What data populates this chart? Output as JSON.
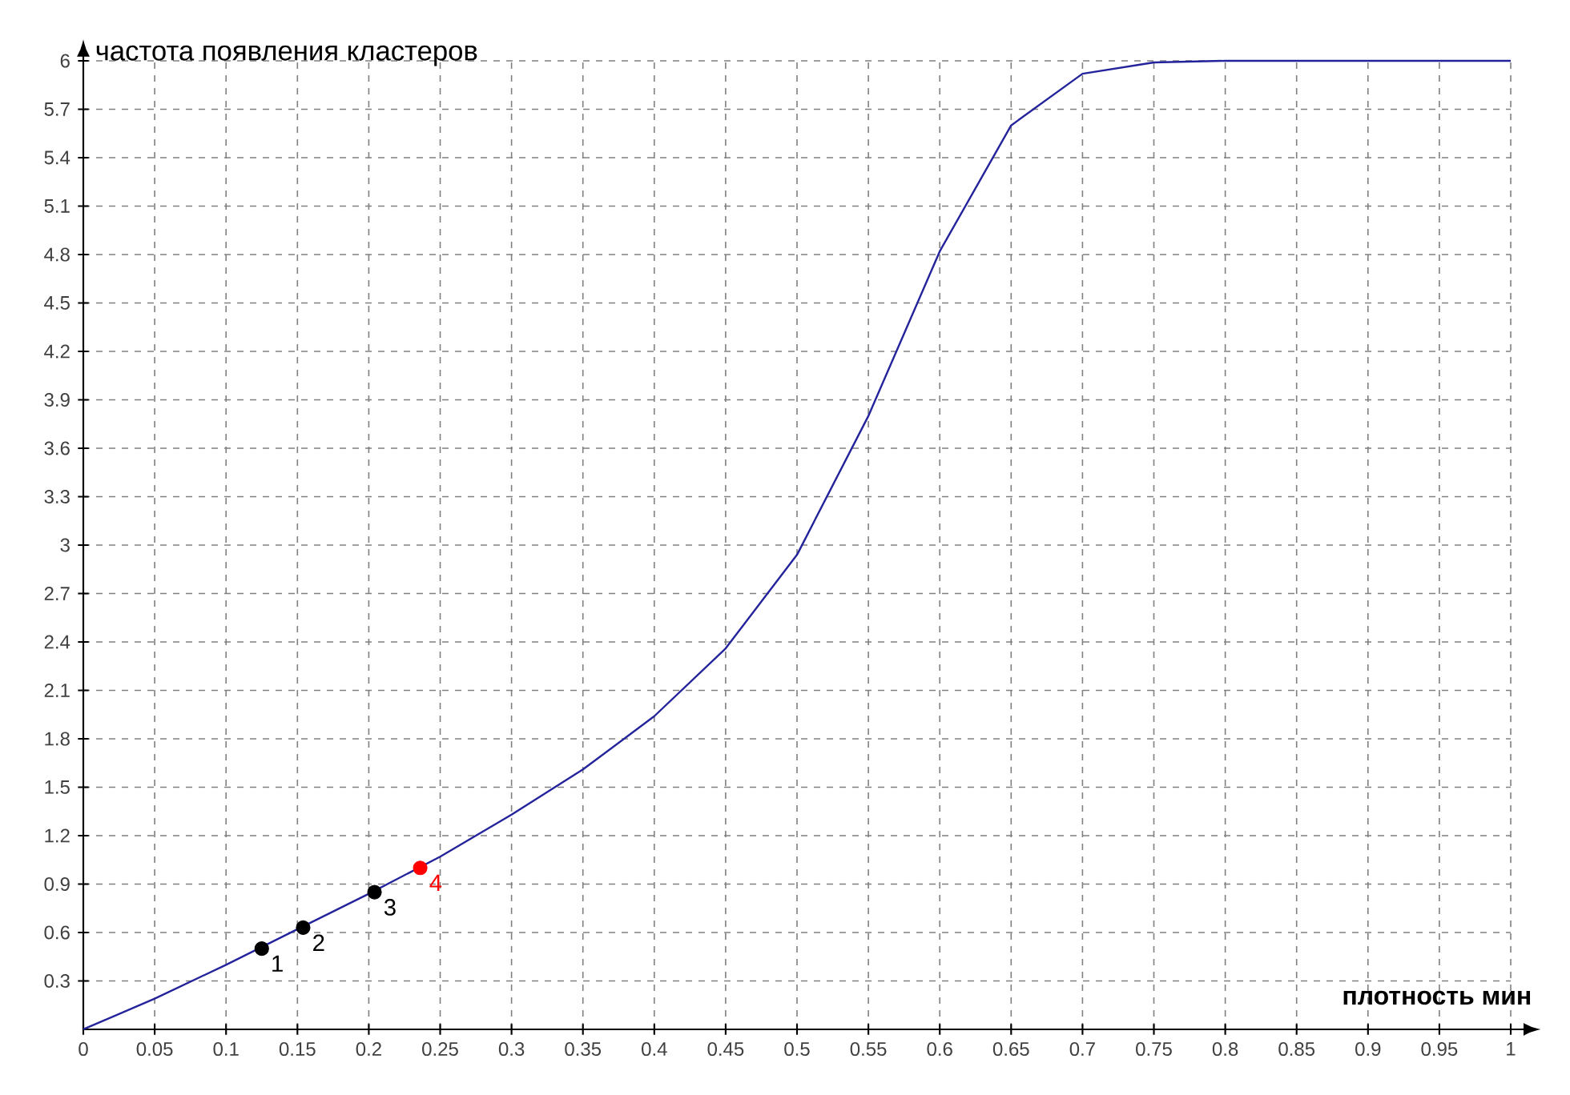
{
  "chart_data": {
    "type": "line",
    "xlabel": "плотность мин",
    "ylabel": "частота появления кластеров",
    "xlim": [
      0,
      1
    ],
    "ylim": [
      0,
      6
    ],
    "xticks": [
      0,
      0.05,
      0.1,
      0.15,
      0.2,
      0.25,
      0.3,
      0.35,
      0.4,
      0.45,
      0.5,
      0.55,
      0.6,
      0.65,
      0.7,
      0.75,
      0.8,
      0.85,
      0.9,
      0.95,
      1
    ],
    "yticks": [
      0.3,
      0.6,
      0.9,
      1.2,
      1.5,
      1.8,
      2.1,
      2.4,
      2.7,
      3,
      3.3,
      3.6,
      3.9,
      4.2,
      4.5,
      4.8,
      5.1,
      5.4,
      5.7,
      6
    ],
    "grid": true,
    "series": [
      {
        "color": "#23239b",
        "marker": "none",
        "x": [
          0,
          0.05,
          0.1,
          0.15,
          0.2,
          0.25,
          0.3,
          0.35,
          0.4,
          0.45,
          0.5,
          0.55,
          0.6,
          0.65,
          0.7,
          0.75,
          0.8,
          0.85,
          0.9,
          0.95,
          1
        ],
        "values": [
          0,
          0.19,
          0.4,
          0.62,
          0.84,
          1.07,
          1.33,
          1.61,
          1.94,
          2.36,
          2.94,
          3.8,
          4.82,
          5.6,
          5.92,
          5.99,
          6,
          6,
          6,
          6,
          6
        ]
      },
      {
        "type": "scatter",
        "marker": "circle",
        "x": [
          0.125,
          0.154,
          0.204,
          0.236
        ],
        "values": [
          0.5,
          0.63,
          0.85,
          1.0
        ],
        "colors": [
          "#000000",
          "#000000",
          "#000000",
          "#ff0000"
        ]
      }
    ],
    "annotations": [
      {
        "text": "1",
        "x": 0.125,
        "y": 0.5
      },
      {
        "text": "2",
        "x": 0.154,
        "y": 0.63
      },
      {
        "text": "3",
        "x": 0.204,
        "y": 0.85
      },
      {
        "text": "4",
        "x": 0.236,
        "y": 1.0
      }
    ]
  }
}
